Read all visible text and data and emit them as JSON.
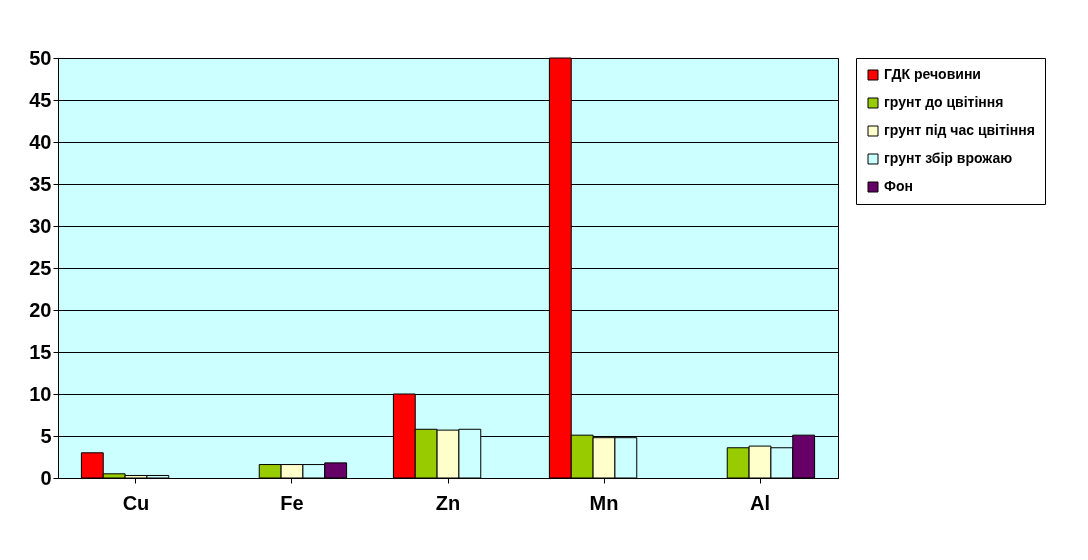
{
  "chart_data": {
    "type": "bar",
    "categories": [
      "Cu",
      "Fe",
      "Zn",
      "Mn",
      "Al"
    ],
    "series": [
      {
        "name": "ГДК речовини",
        "color": "#ff0000",
        "values": [
          3,
          null,
          10,
          50,
          null
        ]
      },
      {
        "name": "грунт до цвітіння",
        "color": "#99cc00",
        "values": [
          0.5,
          1.6,
          5.8,
          5.1,
          3.6
        ]
      },
      {
        "name": "грунт під час цвітіння",
        "color": "#ffffcc",
        "values": [
          0.3,
          1.6,
          5.7,
          4.8,
          3.8
        ]
      },
      {
        "name": "грунт збір врожаю",
        "color": "#ccffff",
        "values": [
          0.3,
          1.6,
          5.8,
          4.8,
          3.6
        ]
      },
      {
        "name": "Фон",
        "color": "#660066",
        "values": [
          null,
          1.8,
          null,
          null,
          5.1
        ]
      }
    ],
    "ylim": [
      0,
      50
    ],
    "yticks": [
      0,
      5,
      10,
      15,
      20,
      25,
      30,
      35,
      40,
      45,
      50
    ],
    "grid": "y",
    "legend": "right"
  }
}
